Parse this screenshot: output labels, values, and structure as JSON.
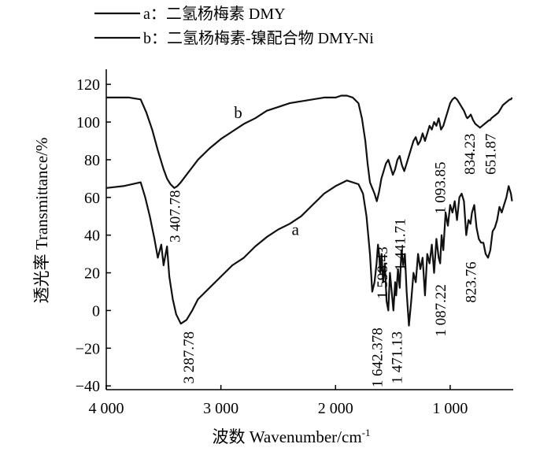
{
  "chart_data": {
    "type": "line",
    "xlabel": "波数 Wavenumber/cm",
    "xlabel_sup": "-1",
    "ylabel": "透光率 Transmittance/%",
    "xlim": [
      4000,
      450
    ],
    "ylim": [
      -42,
      128
    ],
    "x_ticks": [
      {
        "value": 4000,
        "label": "4 000"
      },
      {
        "value": 3000,
        "label": "3 000"
      },
      {
        "value": 2000,
        "label": "2 000"
      },
      {
        "value": 1000,
        "label": "1 000"
      }
    ],
    "y_ticks": [
      {
        "value": 120,
        "label": "120"
      },
      {
        "value": 100,
        "label": "100"
      },
      {
        "value": 80,
        "label": "80"
      },
      {
        "value": 60,
        "label": "60"
      },
      {
        "value": 40,
        "label": "40"
      },
      {
        "value": 20,
        "label": "20"
      },
      {
        "value": 0,
        "label": "0"
      },
      {
        "value": -20,
        "label": "−20"
      },
      {
        "value": -40,
        "label": "−40"
      }
    ],
    "legend": [
      {
        "key": "a",
        "text": "a：二氢杨梅素 DMY"
      },
      {
        "key": "b",
        "text": "b：二氢杨梅素-镍配合物 DMY-Ni"
      }
    ],
    "series": [
      {
        "name": "a",
        "x": [
          4000,
          3850,
          3700,
          3660,
          3620,
          3580,
          3550,
          3520,
          3500,
          3470,
          3450,
          3420,
          3390,
          3350,
          3300,
          3250,
          3200,
          3100,
          3000,
          2900,
          2800,
          2700,
          2600,
          2500,
          2400,
          2300,
          2200,
          2100,
          2000,
          1900,
          1800,
          1760,
          1730,
          1700,
          1680,
          1660,
          1642,
          1630,
          1620,
          1610,
          1598,
          1585,
          1570,
          1555,
          1540,
          1525,
          1510,
          1495,
          1480,
          1471,
          1455,
          1440,
          1425,
          1410,
          1395,
          1380,
          1360,
          1340,
          1320,
          1300,
          1280,
          1260,
          1240,
          1220,
          1200,
          1180,
          1160,
          1140,
          1120,
          1100,
          1087,
          1075,
          1060,
          1040,
          1020,
          1000,
          980,
          960,
          940,
          920,
          900,
          880,
          860,
          840,
          823,
          810,
          790,
          770,
          750,
          730,
          710,
          690,
          670,
          650,
          630,
          610,
          590,
          570,
          550,
          530,
          510,
          490,
          470,
          460
        ],
        "y": [
          65,
          66,
          68,
          60,
          50,
          38,
          28,
          35,
          24,
          34,
          18,
          6,
          -2,
          -7,
          -5,
          0,
          6,
          12,
          18,
          24,
          28,
          34,
          39,
          43,
          46,
          50,
          56,
          62,
          66,
          69,
          67,
          62,
          50,
          30,
          10,
          15,
          25,
          35,
          30,
          20,
          30,
          15,
          25,
          5,
          0,
          20,
          10,
          0,
          15,
          8,
          22,
          12,
          32,
          24,
          30,
          10,
          -8,
          5,
          20,
          15,
          30,
          22,
          28,
          8,
          30,
          25,
          35,
          20,
          38,
          28,
          25,
          40,
          32,
          52,
          45,
          56,
          52,
          58,
          48,
          60,
          62,
          58,
          40,
          48,
          46,
          52,
          56,
          44,
          38,
          36,
          36,
          30,
          28,
          32,
          42,
          44,
          48,
          55,
          52,
          56,
          60,
          66,
          62,
          58
        ]
      },
      {
        "name": "b",
        "x": [
          4000,
          3800,
          3700,
          3650,
          3600,
          3550,
          3500,
          3470,
          3440,
          3407,
          3380,
          3350,
          3300,
          3250,
          3200,
          3100,
          3000,
          2900,
          2800,
          2700,
          2600,
          2500,
          2400,
          2300,
          2200,
          2100,
          2000,
          1950,
          1900,
          1850,
          1800,
          1770,
          1740,
          1720,
          1700,
          1680,
          1660,
          1640,
          1620,
          1600,
          1580,
          1560,
          1540,
          1520,
          1500,
          1480,
          1460,
          1441,
          1420,
          1400,
          1380,
          1360,
          1340,
          1320,
          1300,
          1280,
          1260,
          1240,
          1220,
          1200,
          1180,
          1160,
          1140,
          1120,
          1100,
          1093,
          1080,
          1060,
          1040,
          1020,
          1000,
          980,
          960,
          940,
          920,
          900,
          880,
          860,
          850,
          834,
          820,
          800,
          780,
          760,
          740,
          720,
          700,
          680,
          660,
          651,
          640,
          620,
          600,
          580,
          560,
          540,
          520,
          500,
          480,
          470,
          460
        ],
        "y": [
          113,
          113,
          112,
          105,
          96,
          85,
          75,
          70,
          67,
          65,
          66,
          68,
          72,
          76,
          80,
          86,
          91,
          95,
          99,
          102,
          106,
          108,
          110,
          111,
          112,
          113,
          113,
          114,
          114,
          113,
          110,
          102,
          90,
          78,
          68,
          65,
          62,
          58,
          63,
          70,
          74,
          78,
          80,
          76,
          72,
          75,
          80,
          82,
          77,
          74,
          78,
          82,
          86,
          90,
          92,
          88,
          90,
          94,
          90,
          94,
          98,
          96,
          100,
          98,
          102,
          100,
          96,
          98,
          102,
          106,
          110,
          112,
          113,
          112,
          110,
          108,
          106,
          103,
          102,
          103,
          104,
          101,
          99,
          98,
          97,
          98,
          99,
          100,
          101,
          101,
          102,
          103,
          104,
          105,
          107,
          109,
          110,
          111,
          112,
          112,
          113
        ]
      }
    ],
    "curve_labels": [
      {
        "series": "a",
        "text": "a",
        "x": 2350,
        "y": 40
      },
      {
        "series": "b",
        "text": "b",
        "x": 2850,
        "y": 102
      }
    ],
    "annotations": [
      {
        "text": "3 407.78",
        "x": 3407,
        "y": 50
      },
      {
        "text": "3 287.78",
        "x": 3287,
        "y": -25
      },
      {
        "text": "1 642.378",
        "x": 1642,
        "y": -25
      },
      {
        "text": "1 598.43",
        "x": 1598,
        "y": 20
      },
      {
        "text": "1 471.13",
        "x": 1471,
        "y": -25
      },
      {
        "text": "1 441.71",
        "x": 1441,
        "y": 35
      },
      {
        "text": "1 093.85",
        "x": 1093,
        "y": 65
      },
      {
        "text": "1 087.22",
        "x": 1087,
        "y": 0
      },
      {
        "text": "834.23",
        "x": 834,
        "y": 83
      },
      {
        "text": "651.87",
        "x": 651,
        "y": 83
      },
      {
        "text": "823.76",
        "x": 823,
        "y": 15
      }
    ],
    "grid": false
  }
}
